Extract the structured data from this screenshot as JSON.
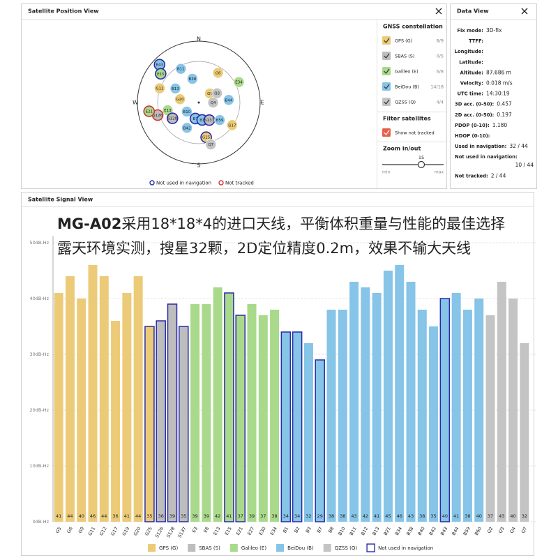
{
  "satellite_position_view": {
    "title": "Satellite Position View",
    "compass": {
      "n": "N",
      "e": "E",
      "s": "S",
      "w": "W"
    },
    "satellites": [
      {
        "label": "B43",
        "az": 314,
        "el": 10,
        "system": "B",
        "state": "not_used"
      },
      {
        "label": "E15",
        "az": 307,
        "el": 20,
        "system": "E",
        "state": "not_used"
      },
      {
        "label": "B11",
        "az": 332,
        "el": 34,
        "system": "B",
        "state": "used"
      },
      {
        "label": "B38",
        "az": 345,
        "el": 54,
        "system": "B",
        "state": "used"
      },
      {
        "label": "G6",
        "az": 33,
        "el": 38,
        "system": "G",
        "state": "used"
      },
      {
        "label": "E34",
        "az": 63,
        "el": 24,
        "system": "E",
        "state": "used"
      },
      {
        "label": "G12",
        "az": 290,
        "el": 29,
        "system": "G",
        "state": "used"
      },
      {
        "label": "B13",
        "az": 301,
        "el": 50,
        "system": "B",
        "state": "used"
      },
      {
        "label": "G9",
        "az": 51,
        "el": 69,
        "system": "G",
        "state": "used"
      },
      {
        "label": "Q3",
        "az": 63,
        "el": 60,
        "system": "Q",
        "state": "used"
      },
      {
        "label": "G20",
        "az": 280,
        "el": 62,
        "system": "G",
        "state": "used"
      },
      {
        "label": "B44",
        "az": 85,
        "el": 46,
        "system": "B",
        "state": "used"
      },
      {
        "label": "Q4",
        "az": 90,
        "el": 69,
        "system": "Q",
        "state": "used"
      },
      {
        "label": "E13",
        "az": 256,
        "el": 43,
        "system": "E",
        "state": "used"
      },
      {
        "label": "S126",
        "az": 253,
        "el": 27,
        "system": "S",
        "state": "not_tracked"
      },
      {
        "label": "E21",
        "az": 260,
        "el": 16,
        "system": "E",
        "state": "not_tracked"
      },
      {
        "label": "S128",
        "az": 239,
        "el": 45,
        "system": "S",
        "state": "not_used"
      },
      {
        "label": "B10",
        "az": 233,
        "el": 68,
        "system": "B",
        "state": "used"
      },
      {
        "label": "B42",
        "az": 205,
        "el": 49,
        "system": "B",
        "state": "used"
      },
      {
        "label": "B7",
        "az": 192,
        "el": 66,
        "system": "B",
        "state": "not_used"
      },
      {
        "label": "B1",
        "az": 169,
        "el": 64,
        "system": "B",
        "state": "not_used"
      },
      {
        "label": "S137",
        "az": 149,
        "el": 60,
        "system": "S",
        "state": "not_used"
      },
      {
        "label": "B59",
        "az": 130,
        "el": 50,
        "system": "B",
        "state": "used"
      },
      {
        "label": "G17",
        "az": 124,
        "el": 31,
        "system": "G",
        "state": "used"
      },
      {
        "label": "E30",
        "az": 164,
        "el": 27,
        "system": "E",
        "state": "used"
      },
      {
        "label": "G25",
        "az": 168,
        "el": 38,
        "system": "G",
        "state": "not_used"
      },
      {
        "label": "Q7",
        "az": 164,
        "el": 26,
        "system": "Q",
        "state": "used"
      }
    ],
    "legend": [
      {
        "name": "Not used in navigation",
        "color": "#2a2aa8"
      },
      {
        "name": "Not tracked",
        "color": "#d33333"
      }
    ],
    "side_panel": {
      "constellation_title": "GNSS constellation",
      "constellations": [
        {
          "name": "GPS (G)",
          "count": "8/9",
          "color": "#eccb78",
          "system": "G"
        },
        {
          "name": "SBAS (S)",
          "count": "0/5",
          "color": "#bdbdbd",
          "system": "S"
        },
        {
          "name": "Galileo (E)",
          "count": "6/8",
          "color": "#a9d98a",
          "system": "E"
        },
        {
          "name": "BeiDou (B)",
          "count": "14/18",
          "color": "#86c4e8",
          "system": "B"
        },
        {
          "name": "QZSS (Q)",
          "count": "4/4",
          "color": "#c4c4c4",
          "system": "Q"
        }
      ],
      "filter_title": "Filter satellites",
      "filter": {
        "name": "Show not tracked",
        "color": "#e8604c"
      },
      "zoom_title": "Zoom in/out",
      "zoom_value": 15,
      "zoom_min": "min",
      "zoom_max": "max"
    }
  },
  "data_view": {
    "title": "Data View",
    "rows": [
      {
        "label": "Fix mode:",
        "value": "3D-fix"
      },
      {
        "label": "TTFF:"
      },
      {
        "label": "Longitude:"
      },
      {
        "label": "Latitude:"
      },
      {
        "label": "Altitude:",
        "value": "87.686 m"
      },
      {
        "label": "Velocity:",
        "value": "0.018 m/s"
      },
      {
        "label": "UTC time:",
        "value": "14:30:19"
      },
      {
        "label": "3D acc. (0-50):",
        "value": "0.457"
      },
      {
        "label": "2D acc. (0-50):",
        "value": "0.197"
      },
      {
        "label": "PDOP (0-10):",
        "value": "1.180"
      },
      {
        "label": "HDOP (0-10):"
      },
      {
        "label": "Used in navigation:",
        "value": "32 / 44"
      },
      {
        "label": "Not used in navigation:",
        "value": "10 / 44"
      },
      {
        "label": "Not tracked:",
        "value": "2 / 44"
      }
    ]
  },
  "signal_view": {
    "title": "Satellite Signal View",
    "headline": {
      "bold": "MG-A02",
      "line1": "采用18*18*4的进口天线，平衡体积重量与性能的最佳选择",
      "line2": "露天环境实测，搜星32颗，2D定位精度0.2m，效果不输大天线"
    },
    "chart_data": {
      "type": "bar",
      "categories": [
        "G5",
        "G6",
        "G9",
        "G11",
        "G12",
        "G17",
        "G19",
        "G20",
        "G25",
        "S126",
        "S128",
        "S137",
        "E3",
        "E8",
        "E13",
        "E15",
        "E21",
        "E27",
        "E30",
        "E34",
        "B1",
        "B2",
        "B3",
        "B7",
        "B8",
        "B10",
        "B11",
        "B12",
        "B13",
        "B21",
        "B34",
        "B38",
        "B40",
        "B42",
        "B43",
        "B44",
        "B59",
        "B60",
        "Q2",
        "Q3",
        "Q4",
        "Q7"
      ],
      "values": [
        41,
        44,
        40,
        46,
        44,
        36,
        41,
        44,
        35,
        36,
        39,
        35,
        39,
        39,
        42,
        41,
        37,
        39,
        37,
        38,
        34,
        34,
        32,
        29,
        38,
        38,
        43,
        42,
        41,
        45,
        46,
        43,
        38,
        35,
        40,
        41,
        38,
        40,
        37,
        43,
        40,
        32
      ],
      "colors": [
        "#eccb78",
        "#eccb78",
        "#eccb78",
        "#eccb78",
        "#eccb78",
        "#eccb78",
        "#eccb78",
        "#eccb78",
        "#eccb78",
        "#bdbdbd",
        "#bdbdbd",
        "#bdbdbd",
        "#a9d98a",
        "#a9d98a",
        "#a9d98a",
        "#a9d98a",
        "#a9d98a",
        "#a9d98a",
        "#a9d98a",
        "#a9d98a",
        "#86c4e8",
        "#86c4e8",
        "#86c4e8",
        "#86c4e8",
        "#86c4e8",
        "#86c4e8",
        "#86c4e8",
        "#86c4e8",
        "#86c4e8",
        "#86c4e8",
        "#86c4e8",
        "#86c4e8",
        "#86c4e8",
        "#86c4e8",
        "#86c4e8",
        "#86c4e8",
        "#86c4e8",
        "#86c4e8",
        "#c4c4c4",
        "#c4c4c4",
        "#c4c4c4",
        "#c4c4c4"
      ],
      "outlined": [
        false,
        false,
        false,
        false,
        false,
        false,
        false,
        false,
        true,
        true,
        true,
        true,
        false,
        false,
        false,
        true,
        true,
        false,
        false,
        false,
        true,
        true,
        false,
        true,
        false,
        false,
        false,
        false,
        false,
        false,
        false,
        false,
        false,
        false,
        true,
        false,
        false,
        false,
        false,
        false,
        false,
        false
      ],
      "outline_color": "#2a2aa8",
      "ylim": [
        0,
        50
      ],
      "yticks": [
        {
          "value": 0,
          "label": "0dB-Hz"
        },
        {
          "value": 10,
          "label": "10dB-Hz"
        },
        {
          "value": 20,
          "label": "20dB-Hz"
        },
        {
          "value": 30,
          "label": "30dB-Hz"
        },
        {
          "value": 40,
          "label": "40dB-Hz"
        },
        {
          "value": 50,
          "label": "50dB-Hz"
        }
      ],
      "grid": true,
      "legend": [
        {
          "name": "GPS (G)",
          "color": "#eccb78"
        },
        {
          "name": "SBAS (S)",
          "color": "#bdbdbd"
        },
        {
          "name": "Galileo (E)",
          "color": "#a9d98a"
        },
        {
          "name": "BeiDou (B)",
          "color": "#86c4e8"
        },
        {
          "name": "QZSS (Q)",
          "color": "#c4c4c4"
        },
        {
          "name": "Not used in navigation",
          "color": "#2a2aa8",
          "outline": true
        }
      ]
    }
  }
}
